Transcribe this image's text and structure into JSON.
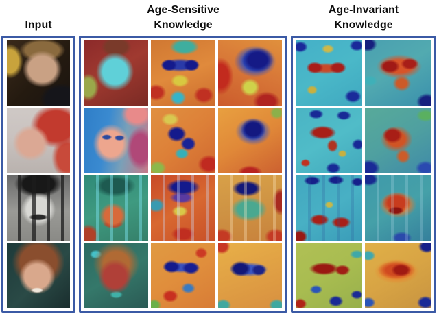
{
  "figure": {
    "headers": {
      "input": {
        "lines": [
          "Input"
        ]
      },
      "age_sensitive": {
        "lines": [
          "Age-Sensitive",
          "Knowledge"
        ]
      },
      "age_invariant": {
        "lines": [
          "Age-Invariant",
          "Knowledge"
        ]
      }
    },
    "groups": [
      {
        "id": "input",
        "columns": 1,
        "rows": 4
      },
      {
        "id": "age_sensitive",
        "columns": 3,
        "rows": 4
      },
      {
        "id": "age_invariant",
        "columns": 2,
        "rows": 4
      }
    ],
    "palette": {
      "frame_border": "#3b5aa5",
      "heat_low": "#16207e",
      "heat_mid_cool": "#45b0c8",
      "heat_mid_warm": "#e8a040",
      "heat_high": "#a81e1a",
      "header_text": "#0d0d0d",
      "background": "#ffffff"
    },
    "tiles": [
      {
        "group": "input",
        "row": 1,
        "col": 1,
        "name": "input-photo-1",
        "style": "t-in-r1",
        "desc": "color photo of a young man, dark background with yellow patch"
      },
      {
        "group": "input",
        "row": 2,
        "col": 1,
        "name": "input-photo-2",
        "style": "t-in-r2",
        "desc": "color photo of a woman with red hair, gray background"
      },
      {
        "group": "input",
        "row": 3,
        "col": 1,
        "name": "input-photo-3",
        "style": "t-in-r3",
        "desc": "black-and-white photo of a mustached man in a hat behind vertical bars"
      },
      {
        "group": "input",
        "row": 4,
        "col": 1,
        "name": "input-photo-4",
        "style": "t-in-r4",
        "desc": "color photo of a smiling woman with curly auburn hair"
      },
      {
        "group": "age_sensitive",
        "row": 1,
        "col": 1,
        "name": "age-sensitive-heatmap-r1c1",
        "style": "t-as-r1c1",
        "desc": "overlay heatmap, cool cyan face on warm dark-red background"
      },
      {
        "group": "age_sensitive",
        "row": 1,
        "col": 2,
        "name": "age-sensitive-heatmap-r1c2",
        "style": "t-as-r1c2",
        "desc": "heatmap, dark blue eye blobs, orange-red surround, cyan top"
      },
      {
        "group": "age_sensitive",
        "row": 1,
        "col": 3,
        "name": "age-sensitive-heatmap-r1c3",
        "style": "t-as-r1c3",
        "desc": "heatmap, large blue blob upper center, red left edge and bottom"
      },
      {
        "group": "age_sensitive",
        "row": 2,
        "col": 1,
        "name": "age-sensitive-heatmap-r2c1",
        "style": "t-as-r2c1",
        "desc": "overlay heatmap, salmon face, blue background left, pink-magenta hair right"
      },
      {
        "group": "age_sensitive",
        "row": 2,
        "col": 2,
        "name": "age-sensitive-heatmap-r2c2",
        "style": "t-as-r2c2",
        "desc": "heatmap, blue central blob, orange-red surround, green corner"
      },
      {
        "group": "age_sensitive",
        "row": 2,
        "col": 3,
        "name": "age-sensitive-heatmap-r2c3",
        "style": "t-as-r2c3",
        "desc": "heatmap, blue blob upper center, orange surround, red bottom edge"
      },
      {
        "group": "age_sensitive",
        "row": 3,
        "col": 1,
        "name": "age-sensitive-heatmap-r3c1",
        "style": "t-as-r3c1",
        "desc": "overlay heatmap, green tint, warm orange face, cyan bars"
      },
      {
        "group": "age_sensitive",
        "row": 3,
        "col": 2,
        "name": "age-sensitive-heatmap-r3c2",
        "style": "t-as-r3c2",
        "desc": "heatmap, dark blue hat blob on red-orange, purple eyes, bar streaks"
      },
      {
        "group": "age_sensitive",
        "row": 3,
        "col": 3,
        "name": "age-sensitive-heatmap-r3c3",
        "style": "t-as-r3c3",
        "desc": "heatmap, blue hat blob, teal face, orange corners, bar streaks"
      },
      {
        "group": "age_sensitive",
        "row": 4,
        "col": 1,
        "name": "age-sensitive-heatmap-r4c1",
        "style": "t-as-r4c1",
        "desc": "overlay heatmap, dark red face on teal background, orange hair"
      },
      {
        "group": "age_sensitive",
        "row": 4,
        "col": 2,
        "name": "age-sensitive-heatmap-r4c2",
        "style": "t-as-r4c2",
        "desc": "heatmap, dark blue eye band, orange surround, red spots"
      },
      {
        "group": "age_sensitive",
        "row": 4,
        "col": 3,
        "name": "age-sensitive-heatmap-r4c3",
        "style": "t-as-r4c3",
        "desc": "heatmap, blue eye band, yellow-orange surround, teal bottom corners"
      },
      {
        "group": "age_invariant",
        "row": 1,
        "col": 1,
        "name": "age-invariant-heatmap-r1c1",
        "style": "t-ai-r1c1",
        "desc": "heatmap, dark red eye blobs on cyan background, navy corners"
      },
      {
        "group": "age_invariant",
        "row": 1,
        "col": 2,
        "name": "age-invariant-heatmap-r1c2",
        "style": "t-ai-r1c2",
        "desc": "heatmap, large red blob across eye region on blue background"
      },
      {
        "group": "age_invariant",
        "row": 2,
        "col": 1,
        "name": "age-invariant-heatmap-r2c1",
        "style": "t-ai-r2c1",
        "desc": "heatmap, red face patch on cyan background, navy patches"
      },
      {
        "group": "age_invariant",
        "row": 2,
        "col": 2,
        "name": "age-invariant-heatmap-r2c2",
        "style": "t-ai-r2c2",
        "desc": "heatmap, red blob center-left on teal-green background"
      },
      {
        "group": "age_invariant",
        "row": 3,
        "col": 1,
        "name": "age-invariant-heatmap-r3c1",
        "style": "t-ai-r3c1",
        "desc": "heatmap, red blobs lower face on cyan, navy top, bar streaks"
      },
      {
        "group": "age_invariant",
        "row": 3,
        "col": 2,
        "name": "age-invariant-heatmap-r3c2",
        "style": "t-ai-r3c2",
        "desc": "heatmap, red-orange face blob on teal, dark red mustache area"
      },
      {
        "group": "age_invariant",
        "row": 4,
        "col": 1,
        "name": "age-invariant-heatmap-r4c1",
        "style": "t-ai-r4c1",
        "desc": "heatmap, dark red eye band on yellow-green background, blue patches"
      },
      {
        "group": "age_invariant",
        "row": 4,
        "col": 2,
        "name": "age-invariant-heatmap-r4c2",
        "style": "t-ai-r4c2",
        "desc": "heatmap, red eye blob on yellow-orange background, blue corners"
      }
    ]
  }
}
